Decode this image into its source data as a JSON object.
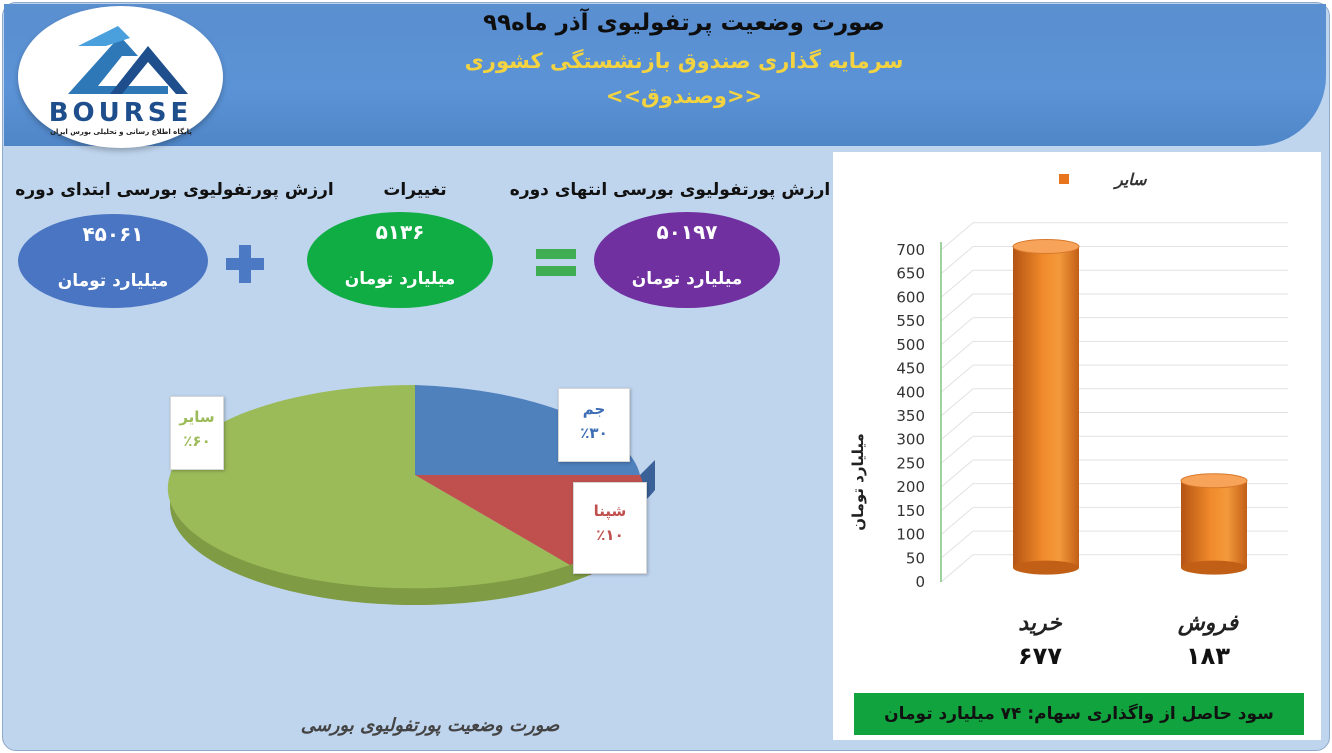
{
  "header": {
    "title": "صورت وضعیت پرتفولیوی آذر ماه۹۹",
    "subtitle1": "سرمایه گذاری صندوق بازنشستگی کشوری",
    "subtitle2": "<<وصندوق>>"
  },
  "logo": {
    "word": "BOURSE",
    "subtitle": "پایگاه اطلاع رسانی و تحلیلی بورس ایران"
  },
  "summary": {
    "start": {
      "label": "ارزش پورتفولیوی بورسی ابتدای دوره",
      "value": "۴۵۰۶۱",
      "unit": "میلیارد تومان",
      "color": "#4a75c2"
    },
    "change": {
      "label": "تغییرات",
      "value": "۵۱۳۶",
      "unit": "میلیارد تومان",
      "color": "#10ad45"
    },
    "end": {
      "label": "ارزش پورتفولیوی بورسی انتهای دوره",
      "value": "۵۰۱۹۷",
      "unit": "میلیارد تومان",
      "color": "#7030a0"
    },
    "plus_color": "#4c79c4",
    "equals_color": "#3fae52"
  },
  "pie": {
    "slices": [
      {
        "name": "جم",
        "percent_label": "٪۳۰",
        "value": 30,
        "color": "#4f81bd",
        "text_color": "#3d6db5"
      },
      {
        "name": "شپنا",
        "percent_label": "٪۱۰",
        "value": 10,
        "color": "#c0504d",
        "text_color": "#c0504d"
      },
      {
        "name": "سایر",
        "percent_label": "٪۶۰",
        "value": 60,
        "color": "#9bbb59",
        "text_color": "#9bbb59"
      }
    ],
    "caption": "صورت وضعیت پورتفولیوی بورسی"
  },
  "chart_data": {
    "type": "bar",
    "categories": [
      "خرید",
      "فروش"
    ],
    "category_value_labels": [
      "۶۷۷",
      "۱۸۳"
    ],
    "series": [
      {
        "name": "سایر",
        "values": [
          677,
          183
        ],
        "color": "#e8741d"
      }
    ],
    "ylabel": "میلیارد تومان",
    "ylim": [
      0,
      700
    ],
    "yticks": [
      0,
      50,
      100,
      150,
      200,
      250,
      300,
      350,
      400,
      450,
      500,
      550,
      600,
      650,
      700
    ],
    "legend": "top"
  },
  "profit": {
    "text": "سود حاصل از واگذاری سهام: ۷۴ میلیارد تومان",
    "color": "#11a33d"
  }
}
